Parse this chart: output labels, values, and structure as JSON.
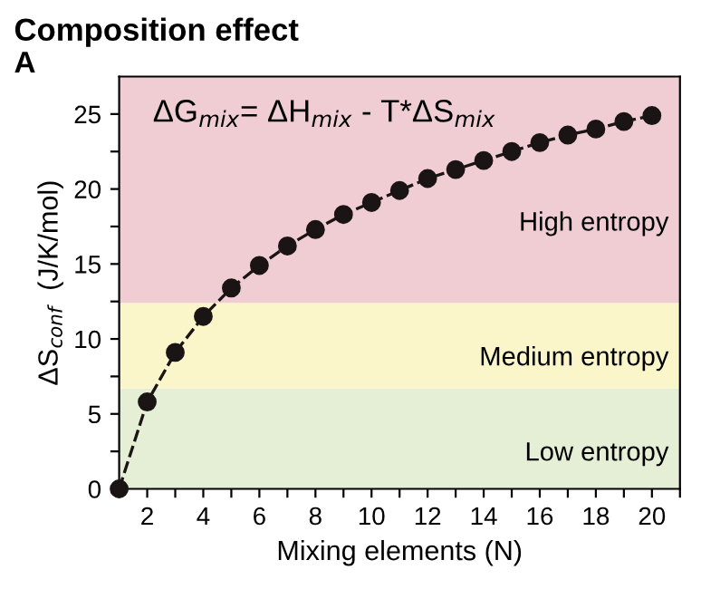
{
  "chart_data": {
    "type": "line",
    "title": "Composition effect",
    "xlabel": "Mixing elements (N)",
    "ylabel": "ΔS$_{conf}$  (J/K/mol)",
    "annotations": [
      "A",
      "ΔG$_{mix}$= ΔH$_{mix}$ - T*ΔS$_{mix}$"
    ],
    "x": [
      1,
      2,
      3,
      4,
      5,
      6,
      7,
      8,
      9,
      10,
      11,
      12,
      13,
      14,
      15,
      16,
      17,
      18,
      19,
      20
    ],
    "series": [
      {
        "color": "#1a1414",
        "values": [
          0,
          5.8,
          9.1,
          11.5,
          13.4,
          14.9,
          16.2,
          17.3,
          18.3,
          19.1,
          19.9,
          20.7,
          21.3,
          21.9,
          22.5,
          23.1,
          23.6,
          24.0,
          24.5,
          24.9
        ]
      }
    ],
    "marker": "circle",
    "line_style": "dashed",
    "xlim": [
      1,
      21
    ],
    "ylim": [
      0,
      27.5
    ],
    "xticks": [
      {
        "value": 1,
        "label": null
      },
      2,
      {
        "value": 3,
        "label": null
      },
      4,
      {
        "value": 5,
        "label": null
      },
      6,
      {
        "value": 7,
        "label": null
      },
      8,
      {
        "value": 9,
        "label": null
      },
      10,
      {
        "value": 11,
        "label": null
      },
      12,
      {
        "value": 13,
        "label": null
      },
      14,
      {
        "value": 15,
        "label": null
      },
      16,
      {
        "value": 17,
        "label": null
      },
      18,
      {
        "value": 19,
        "label": null
      },
      20,
      {
        "value": 21,
        "label": null
      }
    ],
    "yticks": [
      0,
      {
        "value": 2.5,
        "label": null
      },
      5,
      {
        "value": 7.5,
        "label": null
      },
      10,
      {
        "value": 12.5,
        "label": null
      },
      15,
      {
        "value": 17.5,
        "label": null
      },
      20,
      {
        "value": 22.5,
        "label": null
      },
      25
    ],
    "bands": [
      {
        "axis": "y",
        "from": 0,
        "to": 6.7,
        "label": "Low entropy",
        "color": "#e4efd5"
      },
      {
        "axis": "y",
        "from": 6.7,
        "to": 12.4,
        "label": "Medium entropy",
        "color": "#faf6ca"
      },
      {
        "axis": "y",
        "from": 12.4,
        "to": 27.5,
        "label": "High entropy",
        "color": "#f0ccd3"
      }
    ],
    "grid": false,
    "legend": false
  }
}
